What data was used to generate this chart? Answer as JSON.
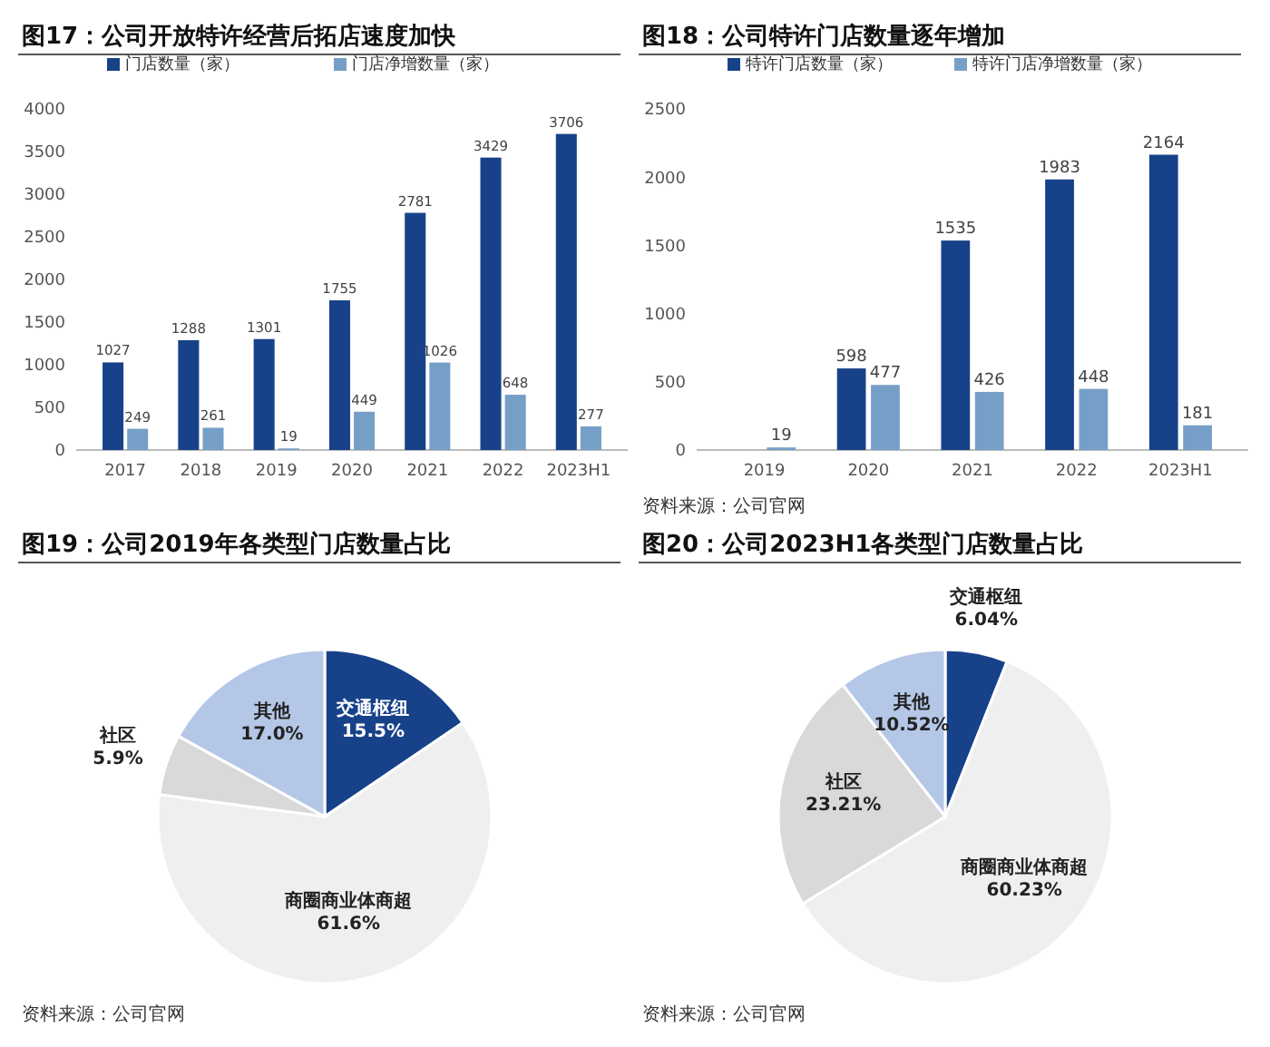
{
  "chart_data": [
    {
      "type": "bar",
      "title": "图17：公司开放特许经营后拓店速度加快",
      "categories": [
        "2017",
        "2018",
        "2019",
        "2020",
        "2021",
        "2022",
        "2023H1"
      ],
      "series": [
        {
          "name": "门店数量（家）",
          "color": "#17428a",
          "values": [
            1027,
            1288,
            1301,
            1755,
            2781,
            3429,
            3706
          ]
        },
        {
          "name": "门店净增数量（家）",
          "color": "#769fc8",
          "values": [
            249,
            261,
            19,
            449,
            1026,
            648,
            277
          ]
        }
      ],
      "ylim": [
        0,
        4000
      ],
      "yticks": [
        0,
        500,
        1000,
        1500,
        2000,
        2500,
        3000,
        3500,
        4000
      ],
      "data_labels": true,
      "legend": "top",
      "grid": false
    },
    {
      "type": "bar",
      "title": "图18：公司特许门店数量逐年增加",
      "categories": [
        "2019",
        "2020",
        "2021",
        "2022",
        "2023H1"
      ],
      "series": [
        {
          "name": "特许门店数量（家）",
          "color": "#17428a",
          "values": [
            null,
            598,
            1535,
            1983,
            2164
          ]
        },
        {
          "name": "特许门店净增数量（家）",
          "color": "#769fc8",
          "values": [
            19,
            477,
            426,
            448,
            181
          ]
        }
      ],
      "ylim": [
        0,
        2500
      ],
      "yticks": [
        0,
        500,
        1000,
        1500,
        2000,
        2500
      ],
      "data_labels": true,
      "legend": "top",
      "grid": false,
      "annotations": [
        "资料来源：公司官网"
      ]
    },
    {
      "type": "pie",
      "title": "图19：公司2019年各类型门店数量占比",
      "categories": [
        "交通枢纽",
        "商圈商业体商超",
        "社区",
        "其他"
      ],
      "values": [
        15.5,
        61.6,
        5.9,
        17.0
      ],
      "value_labels": [
        "15.5%",
        "61.6%",
        "5.9%",
        "17.0%"
      ],
      "colors": [
        "#17428a",
        "#efefef",
        "#d9d9d9",
        "#b4c7e7"
      ],
      "annotations": [
        "资料来源：公司官网"
      ]
    },
    {
      "type": "pie",
      "title": "图20：公司2023H1各类型门店数量占比",
      "categories": [
        "交通枢纽",
        "商圈商业体商超",
        "社区",
        "其他"
      ],
      "values": [
        6.04,
        60.23,
        23.21,
        10.52
      ],
      "value_labels": [
        "6.04%",
        "60.23%",
        "23.21%",
        "10.52%"
      ],
      "colors": [
        "#17428a",
        "#efefef",
        "#d9d9d9",
        "#b4c7e7"
      ],
      "annotations": [
        "资料来源：公司官网"
      ]
    }
  ]
}
